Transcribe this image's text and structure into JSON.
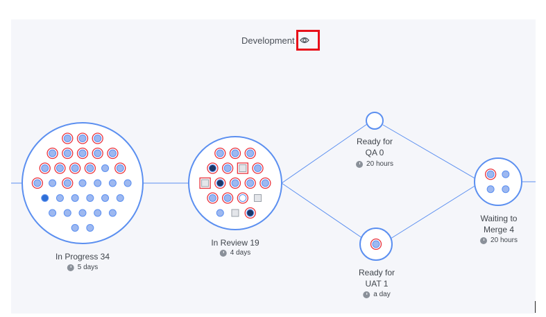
{
  "header": {
    "title": "Development",
    "icon": "eye-icon",
    "highlight_color": "#e8101a"
  },
  "colors": {
    "line": "#5b8ff0",
    "dot": "#9db8f0",
    "dot_border": "#5b8ff0",
    "flag": "#e8303a",
    "dark": "#1c3766",
    "active": "#2f6fd6",
    "square": "#e4e6ea"
  },
  "stages": [
    {
      "id": "in-progress",
      "label": "In Progress 34",
      "time": "5 days",
      "rows": [
        [
          "flagged",
          "flagged",
          "flagged"
        ],
        [
          "flagged",
          "flagged",
          "flagged",
          "flagged",
          "flagged"
        ],
        [
          "flagged",
          "flagged",
          "flagged",
          "flagged",
          "normal",
          "flagged"
        ],
        [
          "flagged",
          "normal",
          "flagged",
          "normal",
          "normal",
          "normal",
          "normal"
        ],
        [
          "active",
          "normal",
          "normal",
          "normal",
          "normal",
          "normal"
        ],
        [
          "normal",
          "normal",
          "normal",
          "normal",
          "normal"
        ],
        [
          "normal",
          "normal"
        ]
      ]
    },
    {
      "id": "in-review",
      "label": "In Review 19",
      "time": "4 days",
      "rows": [
        [
          "flagged",
          "flagged",
          "flagged"
        ],
        [
          "dark-flagged",
          "flagged",
          "square-flagged",
          "flagged"
        ],
        [
          "square-flagged",
          "dark-flagged",
          "flagged",
          "flagged",
          "flagged"
        ],
        [
          "flagged",
          "flagged",
          "hollow-flagged",
          "square"
        ],
        [
          "normal",
          "square",
          "dark-flagged"
        ]
      ]
    },
    {
      "id": "ready-qa",
      "label_lines": [
        "Ready for",
        "QA 0"
      ],
      "time": "20 hours",
      "rows": []
    },
    {
      "id": "ready-uat",
      "label_lines": [
        "Ready for",
        "UAT 1"
      ],
      "time": "a day",
      "rows": [
        [
          "flagged"
        ]
      ]
    },
    {
      "id": "waiting-merge",
      "label_lines": [
        "Waiting to",
        "Merge 4"
      ],
      "time": "20 hours",
      "rows": [
        [
          "flagged",
          "normal"
        ],
        [
          "normal",
          "normal"
        ]
      ]
    }
  ]
}
